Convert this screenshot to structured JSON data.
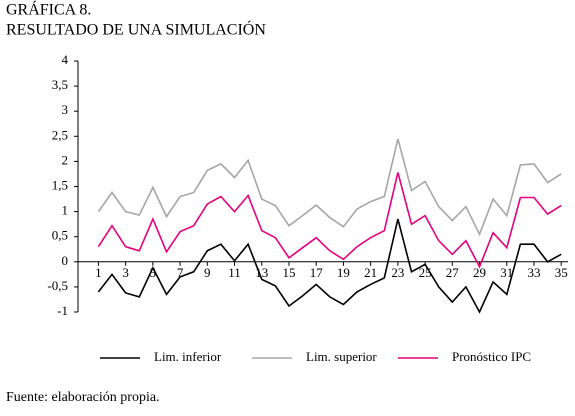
{
  "chart_data": {
    "type": "line",
    "title": "GRÁFICA 8.",
    "subtitle": "RESULTADO DE UNA SIMULACIÓN",
    "source": "Fuente: elaboración propia.",
    "x": [
      1,
      2,
      3,
      4,
      5,
      6,
      7,
      8,
      9,
      10,
      11,
      12,
      13,
      14,
      15,
      16,
      17,
      18,
      19,
      20,
      21,
      22,
      23,
      24,
      25,
      26,
      27,
      28,
      29,
      30,
      31,
      32,
      33,
      34,
      35
    ],
    "xlim": [
      -0.5,
      35.5
    ],
    "xticks": [
      1,
      3,
      5,
      7,
      9,
      11,
      13,
      15,
      17,
      19,
      21,
      23,
      25,
      27,
      29,
      31,
      33,
      35
    ],
    "ylim": [
      -1,
      4
    ],
    "yticks": [
      -1,
      {
        "value": -0.5,
        "label": "-0,5"
      },
      0,
      {
        "value": 0.5,
        "label": "0,5"
      },
      1,
      {
        "value": 1.5,
        "label": "1,5"
      },
      2,
      {
        "value": 2.5,
        "label": "2,5"
      },
      3,
      {
        "value": 3.5,
        "label": "3,5"
      },
      4
    ],
    "legend": "bottom",
    "series": [
      {
        "name": "Lim. inferior",
        "color": "#000000",
        "values": [
          -0.6,
          -0.25,
          -0.62,
          -0.7,
          -0.12,
          -0.65,
          -0.3,
          -0.2,
          0.22,
          0.35,
          0.02,
          0.35,
          -0.35,
          -0.48,
          -0.88,
          -0.68,
          -0.45,
          -0.7,
          -0.85,
          -0.6,
          -0.45,
          -0.32,
          0.85,
          -0.2,
          -0.05,
          -0.5,
          -0.8,
          -0.5,
          -1,
          -0.4,
          -0.65,
          0.35,
          0.35,
          0,
          0.15
        ]
      },
      {
        "name": "Lim. superior",
        "color": "#a6a6a6",
        "values": [
          1.0,
          1.38,
          1.0,
          0.93,
          1.48,
          0.9,
          1.3,
          1.38,
          1.82,
          1.95,
          1.68,
          2.02,
          1.25,
          1.12,
          0.72,
          0.92,
          1.13,
          0.88,
          0.7,
          1.05,
          1.2,
          1.3,
          2.45,
          1.42,
          1.6,
          1.1,
          0.82,
          1.1,
          0.55,
          1.25,
          0.92,
          1.93,
          1.95,
          1.58,
          1.75
        ]
      },
      {
        "name": "Pronóstico IPC",
        "color": "#e6007e",
        "values": [
          0.3,
          0.72,
          0.3,
          0.22,
          0.85,
          0.2,
          0.6,
          0.72,
          1.15,
          1.3,
          1.0,
          1.32,
          0.62,
          0.48,
          0.08,
          0.28,
          0.48,
          0.22,
          0.05,
          0.3,
          0.48,
          0.62,
          1.78,
          0.75,
          0.92,
          0.42,
          0.15,
          0.42,
          -0.1,
          0.58,
          0.28,
          1.28,
          1.28,
          0.95,
          1.12
        ]
      }
    ]
  }
}
